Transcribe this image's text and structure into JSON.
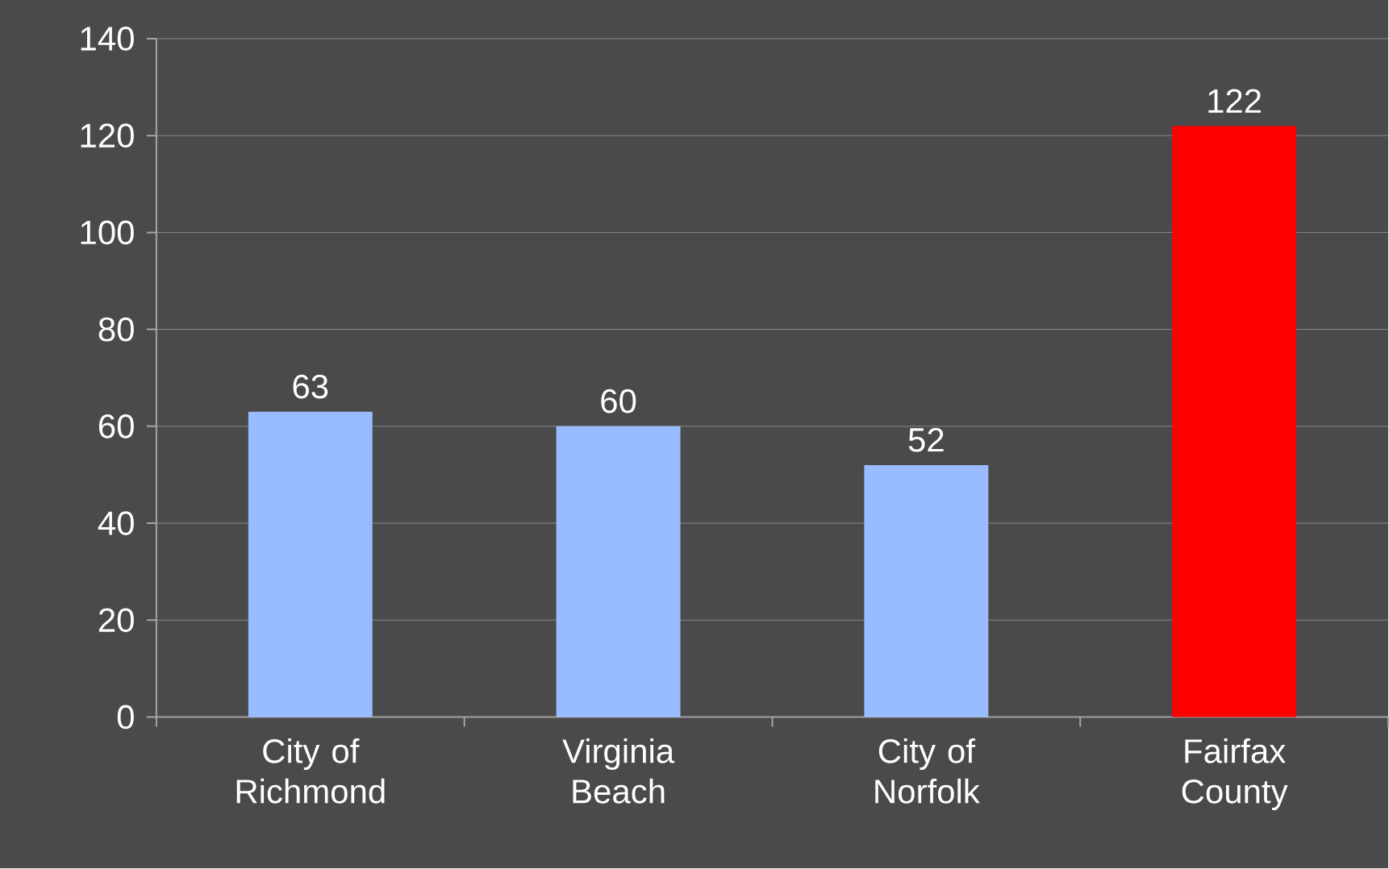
{
  "chart_data": {
    "type": "bar",
    "categories": [
      "City of Richmond",
      "Virginia Beach",
      "City of Norfolk",
      "Fairfax County"
    ],
    "values": [
      63,
      60,
      52,
      122
    ],
    "colors": [
      "#99bbff",
      "#99bbff",
      "#99bbff",
      "#ff0000"
    ],
    "ylim": [
      0,
      140
    ],
    "yticks": [
      0,
      20,
      40,
      60,
      80,
      100,
      120,
      140
    ],
    "grid": "y",
    "data_labels": true
  }
}
